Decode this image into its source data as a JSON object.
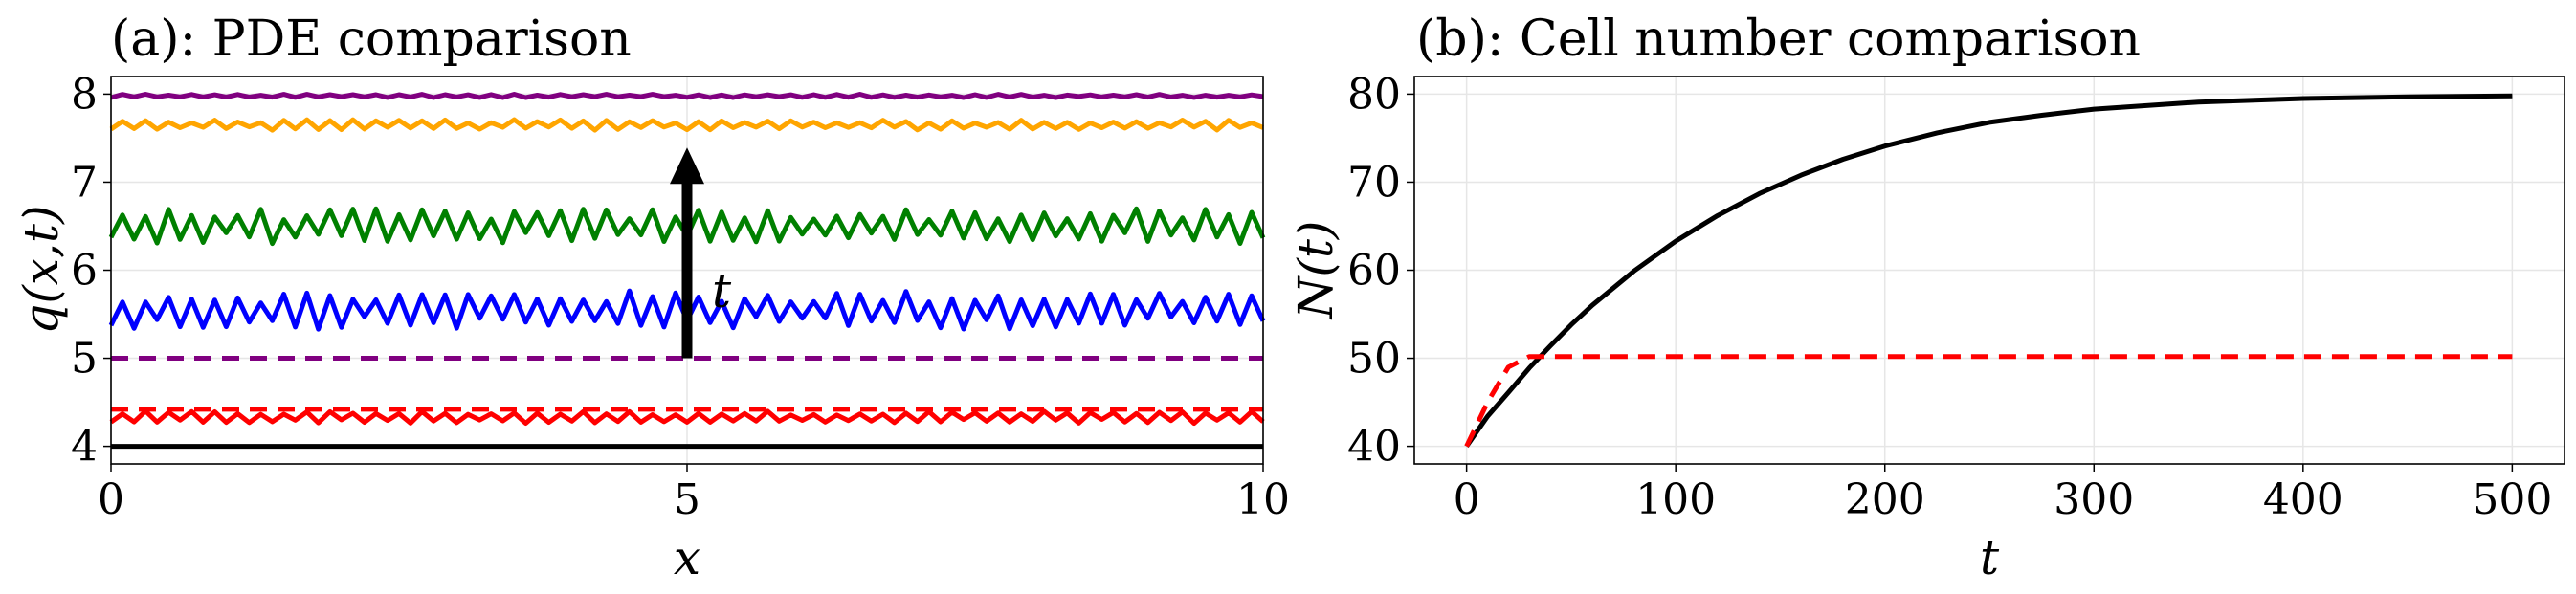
{
  "chart_data": [
    {
      "type": "line",
      "title": "(a): PDE comparison",
      "xlabel": "x",
      "ylabel": "q(x,t)",
      "xlim": [
        0,
        10
      ],
      "ylim": [
        3.8,
        8.2
      ],
      "xticks": [
        "0",
        "5",
        "10"
      ],
      "yticks": [
        "4",
        "5",
        "6",
        "7",
        "8"
      ],
      "grid": true,
      "annotation": {
        "text": "t",
        "arrow_x": 5,
        "arrow_from_y": 5.0,
        "arrow_to_y": 7.35
      },
      "series": [
        {
          "color": "#000000",
          "style": "solid",
          "mean": 4.0,
          "amp": 0.0
        },
        {
          "color": "#ff0000",
          "style": "solid",
          "mean": 4.33,
          "amp": 0.07
        },
        {
          "color": "#ff0000",
          "style": "dashed",
          "mean": 4.42,
          "amp": 0.0
        },
        {
          "color": "#800080",
          "style": "dashed",
          "mean": 5.0,
          "amp": 0.0
        },
        {
          "color": "#0000ff",
          "style": "solid",
          "mean": 5.55,
          "amp": 0.22
        },
        {
          "color": "#008000",
          "style": "solid",
          "mean": 6.5,
          "amp": 0.2
        },
        {
          "color": "#ffa500",
          "style": "solid",
          "mean": 7.65,
          "amp": 0.06
        },
        {
          "color": "#800080",
          "style": "solid",
          "mean": 7.98,
          "amp": 0.02
        }
      ]
    },
    {
      "type": "line",
      "title": "(b): Cell number comparison",
      "xlabel": "t",
      "ylabel": "N(t)",
      "xlim": [
        -25,
        525
      ],
      "ylim": [
        38,
        82
      ],
      "xticks": [
        0,
        100,
        200,
        300,
        400,
        500
      ],
      "yticks": [
        40,
        50,
        60,
        70,
        80
      ],
      "grid": true,
      "series": [
        {
          "color": "#000000",
          "style": "solid",
          "x": [
            0,
            10,
            20,
            30,
            40,
            50,
            60,
            80,
            100,
            120,
            140,
            160,
            180,
            200,
            225,
            250,
            275,
            300,
            350,
            400,
            450,
            500
          ],
          "y": [
            40,
            43.4,
            46.1,
            48.9,
            51.4,
            53.8,
            56.0,
            59.9,
            63.3,
            66.2,
            68.7,
            70.8,
            72.6,
            74.1,
            75.6,
            76.8,
            77.6,
            78.3,
            79.1,
            79.5,
            79.7,
            79.8
          ]
        },
        {
          "color": "#ff0000",
          "style": "dashed",
          "x": [
            0,
            10,
            20,
            30,
            40,
            100,
            200,
            300,
            400,
            500
          ],
          "y": [
            40,
            45.0,
            49.0,
            50.2,
            50.2,
            50.2,
            50.2,
            50.2,
            50.2,
            50.2
          ]
        }
      ]
    }
  ]
}
